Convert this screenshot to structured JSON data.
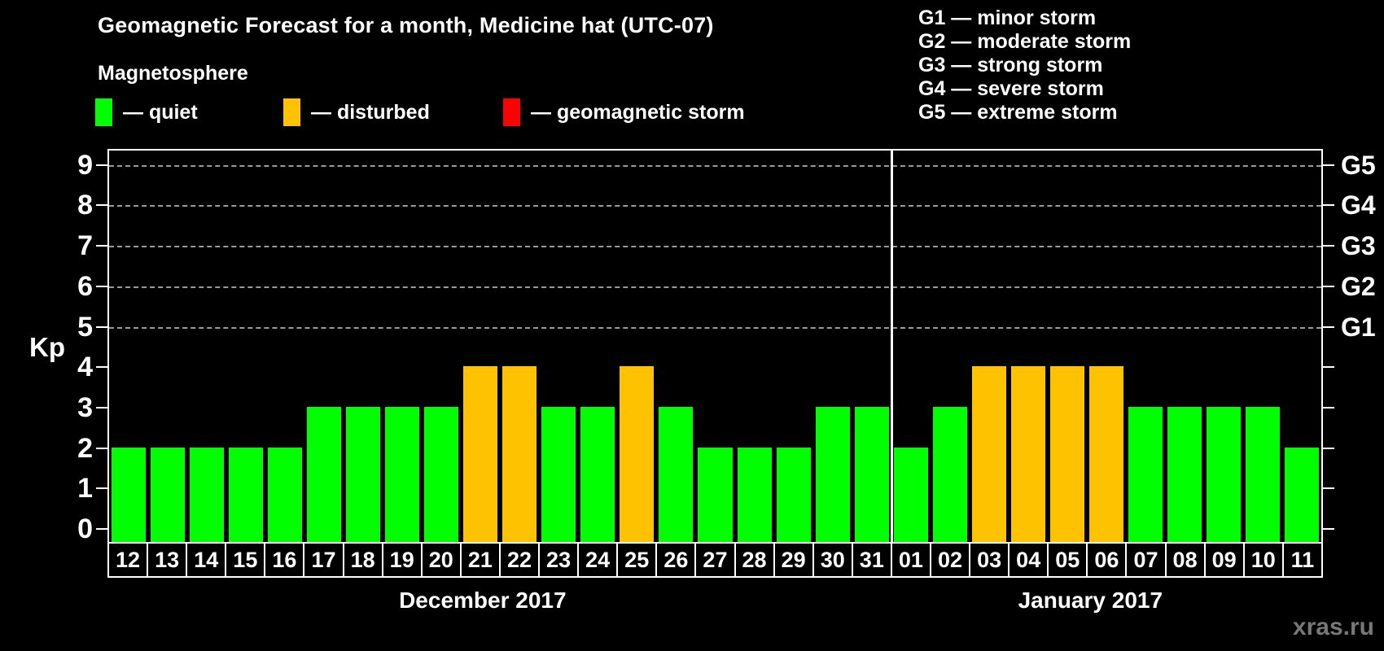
{
  "header": {
    "subtitle": "Magnetosphere"
  },
  "legend": {
    "items": [
      {
        "name": "quiet",
        "label": "— quiet",
        "color": "#00ff00"
      },
      {
        "name": "disturbed",
        "label": "— disturbed",
        "color": "#ffc200"
      },
      {
        "name": "storm",
        "label": "— geomagnetic storm",
        "color": "#ff0000"
      }
    ]
  },
  "storm_scale_legend": {
    "lines": [
      "G1 — minor storm",
      "G2 — moderate storm",
      "G3 — strong storm",
      "G4 — severe storm",
      "G5 — extreme storm"
    ]
  },
  "watermark": "xras.ru",
  "chart_data": {
    "type": "bar",
    "title": "Geomagnetic Forecast for a month, Medicine hat (UTC-07)",
    "ylabel": "Kp",
    "ylim": [
      0,
      9
    ],
    "yticks": [
      0,
      1,
      2,
      3,
      4,
      5,
      6,
      7,
      8,
      9
    ],
    "gridlines_at": [
      5,
      6,
      7,
      8,
      9
    ],
    "grid": "dashed, only at storm levels 5-9",
    "legend_position": "top",
    "right_axis_labels": [
      {
        "kp": 5,
        "label": "G1"
      },
      {
        "kp": 6,
        "label": "G2"
      },
      {
        "kp": 7,
        "label": "G3"
      },
      {
        "kp": 8,
        "label": "G4"
      },
      {
        "kp": 9,
        "label": "G5"
      }
    ],
    "status_colors": {
      "quiet": "#00ff00",
      "disturbed": "#ffc200",
      "storm": "#ff0000"
    },
    "months": [
      {
        "label": "December 2017",
        "days": [
          "12",
          "13",
          "14",
          "15",
          "16",
          "17",
          "18",
          "19",
          "20",
          "21",
          "22",
          "23",
          "24",
          "25",
          "26",
          "27",
          "28",
          "29",
          "30",
          "31"
        ],
        "values": [
          2,
          2,
          2,
          2,
          2,
          3,
          3,
          3,
          3,
          4,
          4,
          3,
          3,
          4,
          3,
          2,
          2,
          2,
          3,
          3
        ],
        "statuses": [
          "quiet",
          "quiet",
          "quiet",
          "quiet",
          "quiet",
          "quiet",
          "quiet",
          "quiet",
          "quiet",
          "disturbed",
          "disturbed",
          "quiet",
          "quiet",
          "disturbed",
          "quiet",
          "quiet",
          "quiet",
          "quiet",
          "quiet",
          "quiet"
        ]
      },
      {
        "label": "January 2017",
        "days": [
          "01",
          "02",
          "03",
          "04",
          "05",
          "06",
          "07",
          "08",
          "09",
          "10",
          "11"
        ],
        "values": [
          2,
          3,
          4,
          4,
          4,
          4,
          3,
          3,
          3,
          3,
          2
        ],
        "statuses": [
          "quiet",
          "quiet",
          "disturbed",
          "disturbed",
          "disturbed",
          "disturbed",
          "quiet",
          "quiet",
          "quiet",
          "quiet",
          "quiet"
        ]
      }
    ]
  }
}
